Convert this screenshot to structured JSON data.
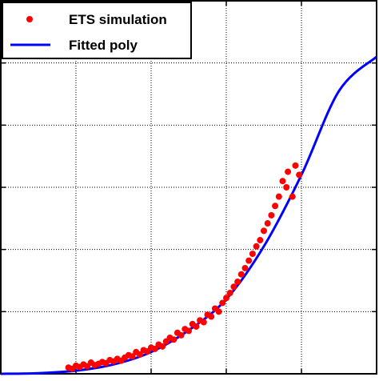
{
  "chart_data": {
    "type": "scatter",
    "title": "",
    "xlabel": "",
    "ylabel": "",
    "grid": true,
    "legend_position": "top-left",
    "xlim": [
      0,
      5
    ],
    "ylim": [
      0,
      6
    ],
    "xticks": [
      1,
      2,
      3,
      4,
      5
    ],
    "yticks": [
      1,
      2,
      3,
      4,
      5
    ],
    "series": [
      {
        "name": "ETS simulation",
        "kind": "scatter",
        "color": "#ff0000",
        "points": [
          [
            0.9,
            0.1
          ],
          [
            0.95,
            0.08
          ],
          [
            1.0,
            0.13
          ],
          [
            1.05,
            0.11
          ],
          [
            1.1,
            0.15
          ],
          [
            1.15,
            0.12
          ],
          [
            1.2,
            0.18
          ],
          [
            1.25,
            0.14
          ],
          [
            1.3,
            0.16
          ],
          [
            1.35,
            0.19
          ],
          [
            1.4,
            0.17
          ],
          [
            1.45,
            0.22
          ],
          [
            1.5,
            0.2
          ],
          [
            1.55,
            0.24
          ],
          [
            1.6,
            0.21
          ],
          [
            1.65,
            0.26
          ],
          [
            1.7,
            0.3
          ],
          [
            1.75,
            0.28
          ],
          [
            1.8,
            0.35
          ],
          [
            1.85,
            0.31
          ],
          [
            1.9,
            0.38
          ],
          [
            1.95,
            0.36
          ],
          [
            2.0,
            0.42
          ],
          [
            2.05,
            0.4
          ],
          [
            2.1,
            0.47
          ],
          [
            2.15,
            0.44
          ],
          [
            2.2,
            0.52
          ],
          [
            2.25,
            0.58
          ],
          [
            2.3,
            0.55
          ],
          [
            2.35,
            0.66
          ],
          [
            2.4,
            0.62
          ],
          [
            2.45,
            0.72
          ],
          [
            2.5,
            0.69
          ],
          [
            2.55,
            0.8
          ],
          [
            2.6,
            0.76
          ],
          [
            2.65,
            0.86
          ],
          [
            2.7,
            0.83
          ],
          [
            2.75,
            0.95
          ],
          [
            2.8,
            0.92
          ],
          [
            2.85,
            1.05
          ],
          [
            2.9,
            1.0
          ],
          [
            2.95,
            1.14
          ],
          [
            3.0,
            1.22
          ],
          [
            3.05,
            1.3
          ],
          [
            3.1,
            1.4
          ],
          [
            3.15,
            1.48
          ],
          [
            3.2,
            1.6
          ],
          [
            3.25,
            1.7
          ],
          [
            3.3,
            1.82
          ],
          [
            3.35,
            1.93
          ],
          [
            3.4,
            2.05
          ],
          [
            3.45,
            2.15
          ],
          [
            3.5,
            2.3
          ],
          [
            3.55,
            2.42
          ],
          [
            3.6,
            2.55
          ],
          [
            3.65,
            2.7
          ],
          [
            3.7,
            2.85
          ],
          [
            3.75,
            3.1
          ],
          [
            3.8,
            3.0
          ],
          [
            3.82,
            3.25
          ],
          [
            3.88,
            2.85
          ],
          [
            3.92,
            3.35
          ],
          [
            3.97,
            3.2
          ]
        ]
      },
      {
        "name": "Fitted poly",
        "kind": "line",
        "color": "#0000ff",
        "x": [
          0.0,
          0.5,
          1.0,
          1.5,
          2.0,
          2.5,
          3.0,
          3.5,
          4.0,
          4.5,
          5.0
        ],
        "y": [
          0.0,
          0.01,
          0.05,
          0.15,
          0.35,
          0.7,
          1.2,
          2.05,
          3.2,
          4.55,
          5.1
        ]
      }
    ]
  }
}
